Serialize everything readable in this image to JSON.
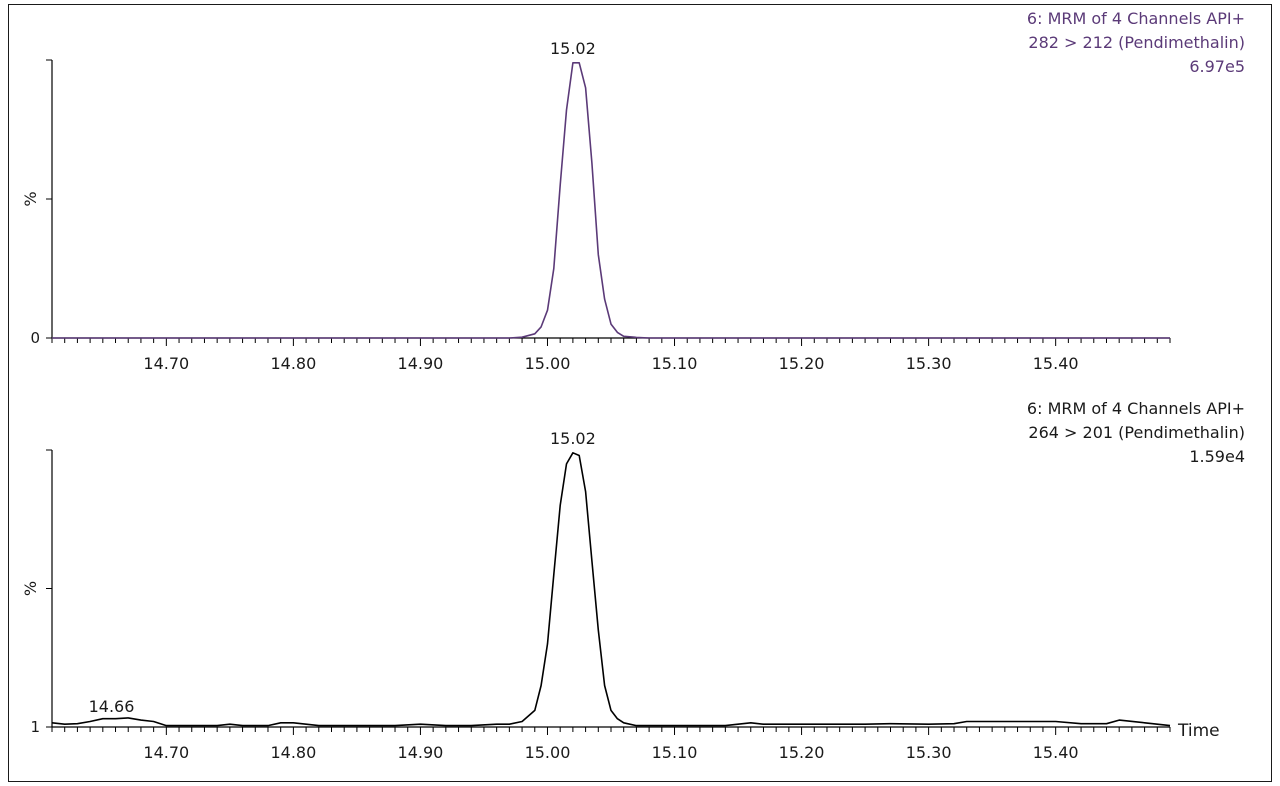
{
  "chart_data": [
    {
      "type": "line",
      "header": {
        "line1": "6: MRM of 4 Channels API+",
        "line2": "282 > 212 (Pendimethalin)",
        "line3": "6.97e5"
      },
      "ylabel": "%",
      "y_ticklabels": [
        "0"
      ],
      "x_ticklabels": [
        "14.70",
        "14.80",
        "14.90",
        "15.00",
        "15.10",
        "15.20",
        "15.30",
        "15.40"
      ],
      "xlim": [
        14.61,
        15.49
      ],
      "ylim": [
        0,
        100
      ],
      "line_color": "#5b3a78",
      "peak_label": {
        "text": "15.02",
        "x": 15.02
      },
      "series": [
        {
          "x": [
            14.61,
            14.97,
            14.98,
            14.99,
            14.995,
            15.0,
            15.005,
            15.01,
            15.015,
            15.02,
            15.025,
            15.03,
            15.035,
            15.04,
            15.045,
            15.05,
            15.055,
            15.06,
            15.07,
            15.08,
            15.49
          ],
          "y": [
            0,
            0,
            0.3,
            1.5,
            4,
            10,
            25,
            55,
            82,
            99,
            99,
            90,
            63,
            30,
            14,
            5,
            2,
            0.6,
            0.2,
            0,
            0
          ]
        }
      ]
    },
    {
      "type": "line",
      "header": {
        "line1": "6: MRM of 4 Channels API+",
        "line2": "264 > 201 (Pendimethalin)",
        "line3": "1.59e4"
      },
      "ylabel": "%",
      "y_ticklabels": [
        "1"
      ],
      "x_ticklabels": [
        "14.70",
        "14.80",
        "14.90",
        "15.00",
        "15.10",
        "15.20",
        "15.30",
        "15.40"
      ],
      "x_axis_title": "Time",
      "xlim": [
        14.61,
        15.49
      ],
      "ylim": [
        0,
        100
      ],
      "line_color": "#000000",
      "peak_label": {
        "text": "15.02",
        "x": 15.02
      },
      "minor_peak_label": {
        "text": "14.66",
        "x": 14.66
      },
      "series": [
        {
          "x": [
            14.61,
            14.62,
            14.63,
            14.64,
            14.65,
            14.66,
            14.67,
            14.68,
            14.69,
            14.7,
            14.72,
            14.74,
            14.75,
            14.76,
            14.78,
            14.79,
            14.8,
            14.82,
            14.84,
            14.86,
            14.88,
            14.9,
            14.92,
            14.94,
            14.96,
            14.97,
            14.98,
            14.99,
            14.995,
            15.0,
            15.005,
            15.01,
            15.015,
            15.02,
            15.025,
            15.03,
            15.035,
            15.04,
            15.045,
            15.05,
            15.055,
            15.06,
            15.07,
            15.08,
            15.1,
            15.12,
            15.14,
            15.16,
            15.17,
            15.2,
            15.25,
            15.27,
            15.3,
            15.32,
            15.33,
            15.35,
            15.4,
            15.42,
            15.44,
            15.45,
            15.47,
            15.49
          ],
          "y": [
            1.5,
            1,
            1.2,
            2,
            3,
            3,
            3.3,
            2.5,
            2,
            0.5,
            0.5,
            0.5,
            1,
            0.5,
            0.5,
            1.5,
            1.5,
            0.5,
            0.5,
            0.5,
            0.5,
            1,
            0.5,
            0.5,
            1,
            1,
            2,
            6,
            15,
            30,
            55,
            80,
            95,
            99,
            98,
            85,
            60,
            35,
            15,
            6,
            3,
            1.5,
            0.5,
            0.5,
            0.5,
            0.5,
            0.5,
            1.5,
            1,
            1,
            1,
            1.2,
            1,
            1.2,
            2,
            2,
            2,
            1.2,
            1.2,
            2.5,
            1.5,
            0.5
          ]
        }
      ]
    }
  ]
}
